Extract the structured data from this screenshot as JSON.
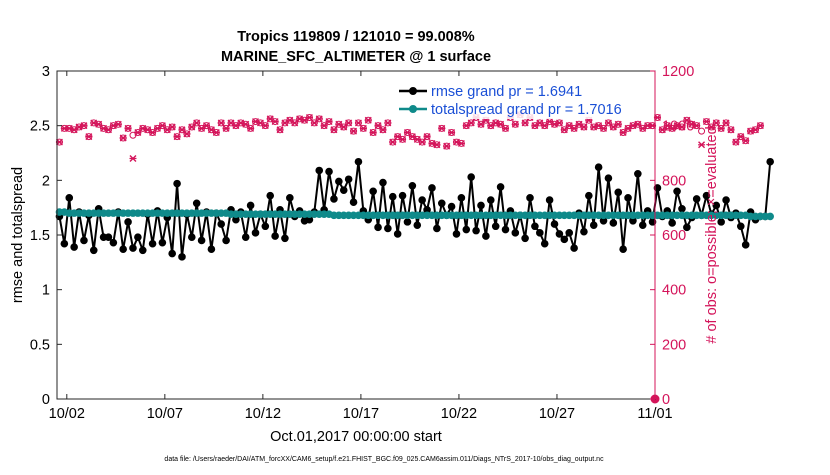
{
  "chart_data": {
    "type": "line",
    "title_line1": "Tropics 119809 / 121010 = 99.008%",
    "title_line2": "MARINE_SFC_ALTIMETER @ 1 surface",
    "xlabel": "Oct.01,2017 00:00:00 start",
    "ylabel_left": "rmse and totalspread",
    "ylabel_right": "# of obs: o=possible; ×=evaluated",
    "footnote": "data file: /Users/raeder/DAI/ATM_forcXX/CAM6_setup/f.e21.FHIST_BGC.f09_025.CAM6assim.011/Diags_NTrS_2017-10/obs_diag_output.nc",
    "x_ticks": [
      "10/02",
      "10/07",
      "10/12",
      "10/17",
      "10/22",
      "10/27",
      "11/01"
    ],
    "x_tick_days": [
      1,
      6,
      11,
      16,
      21,
      26,
      31
    ],
    "xlim_days": [
      0.5,
      31
    ],
    "y_left_ticks": [
      "0",
      "0.5",
      "1",
      "1.5",
      "2",
      "2.5",
      "3"
    ],
    "ylim_left": [
      0,
      3
    ],
    "y_right_ticks": [
      "0",
      "200",
      "400",
      "600",
      "800",
      "1000",
      "1200"
    ],
    "ylim_right": [
      0,
      1200
    ],
    "grid": false,
    "legend_position": "top-right",
    "colors": {
      "rmse": "#000000",
      "spread": "#0f8a8a",
      "obs": "#d4145a",
      "legend_text": "#1a4fd6"
    },
    "series": [
      {
        "name": "rmse grand pr = 1.6941",
        "axis": "left",
        "values": [
          1.67,
          1.42,
          1.84,
          1.39,
          1.71,
          1.45,
          1.68,
          1.36,
          1.74,
          1.48,
          1.48,
          1.43,
          1.71,
          1.37,
          1.62,
          1.38,
          1.48,
          1.36,
          1.69,
          1.42,
          1.72,
          1.43,
          1.66,
          1.33,
          1.97,
          1.3,
          1.69,
          1.48,
          1.79,
          1.45,
          1.71,
          1.37,
          1.7,
          1.6,
          1.45,
          1.73,
          1.64,
          1.71,
          1.48,
          1.77,
          1.52,
          1.69,
          1.58,
          1.86,
          1.49,
          1.73,
          1.47,
          1.84,
          1.67,
          1.72,
          1.63,
          1.64,
          1.71,
          2.09,
          1.73,
          2.08,
          1.83,
          1.99,
          1.91,
          2.01,
          1.8,
          2.17,
          1.72,
          1.64,
          1.9,
          1.57,
          1.98,
          1.56,
          1.85,
          1.51,
          1.86,
          1.62,
          1.95,
          1.59,
          1.82,
          1.73,
          1.93,
          1.56,
          1.79,
          1.68,
          1.76,
          1.51,
          1.84,
          1.55,
          2.03,
          1.54,
          1.77,
          1.49,
          1.82,
          1.58,
          1.94,
          1.55,
          1.72,
          1.52,
          1.68,
          1.47,
          1.84,
          1.58,
          1.52,
          1.42,
          1.82,
          1.6,
          1.51,
          1.46,
          1.52,
          1.38,
          1.7,
          1.53,
          1.86,
          1.59,
          2.12,
          1.63,
          2.02,
          1.61,
          1.89,
          1.37,
          1.84,
          1.63,
          2.06,
          1.59,
          1.72,
          1.62,
          1.93,
          1.67,
          1.72,
          1.61,
          1.9,
          1.74,
          1.57,
          1.66,
          1.83,
          1.68,
          1.86,
          1.69,
          1.77,
          1.62,
          1.82,
          1.66,
          1.7,
          1.58,
          1.41,
          1.71,
          1.64,
          1.67,
          1.67,
          2.17
        ]
      },
      {
        "name": "totalspread grand pr = 1.7016",
        "axis": "left",
        "values": [
          1.71,
          1.71,
          1.7,
          1.7,
          1.7,
          1.7,
          1.7,
          1.7,
          1.7,
          1.7,
          1.7,
          1.7,
          1.7,
          1.7,
          1.7,
          1.7,
          1.7,
          1.7,
          1.7,
          1.7,
          1.7,
          1.7,
          1.7,
          1.7,
          1.7,
          1.7,
          1.7,
          1.7,
          1.7,
          1.7,
          1.7,
          1.7,
          1.7,
          1.7,
          1.7,
          1.69,
          1.69,
          1.69,
          1.69,
          1.69,
          1.69,
          1.69,
          1.69,
          1.69,
          1.69,
          1.69,
          1.69,
          1.69,
          1.69,
          1.69,
          1.69,
          1.69,
          1.69,
          1.69,
          1.69,
          1.69,
          1.68,
          1.68,
          1.68,
          1.68,
          1.68,
          1.68,
          1.68,
          1.68,
          1.68,
          1.68,
          1.68,
          1.68,
          1.68,
          1.68,
          1.68,
          1.68,
          1.68,
          1.68,
          1.68,
          1.68,
          1.68,
          1.68,
          1.68,
          1.68,
          1.68,
          1.68,
          1.68,
          1.68,
          1.68,
          1.68,
          1.68,
          1.68,
          1.68,
          1.68,
          1.68,
          1.68,
          1.68,
          1.68,
          1.68,
          1.68,
          1.68,
          1.68,
          1.68,
          1.68,
          1.68,
          1.68,
          1.68,
          1.68,
          1.68,
          1.68,
          1.68,
          1.68,
          1.68,
          1.68,
          1.68,
          1.68,
          1.68,
          1.68,
          1.68,
          1.68,
          1.68,
          1.68,
          1.68,
          1.68,
          1.68,
          1.68,
          1.68,
          1.68,
          1.68,
          1.68,
          1.68,
          1.68,
          1.68,
          1.68,
          1.68,
          1.68,
          1.68,
          1.68,
          1.68,
          1.68,
          1.68,
          1.68,
          1.68,
          1.68,
          1.68,
          1.67,
          1.67,
          1.67,
          1.67,
          1.67
        ]
      },
      {
        "name": "obs possible",
        "axis": "right",
        "marker": "o",
        "values": [
          940,
          990,
          990,
          985,
          995,
          1000,
          960,
          1010,
          1005,
          990,
          985,
          1000,
          1005,
          955,
          990,
          965,
          975,
          990,
          985,
          975,
          990,
          1000,
          985,
          995,
          960,
          985,
          970,
          995,
          1010,
          990,
          1000,
          985,
          975,
          1010,
          990,
          1010,
          1000,
          1010,
          1005,
          990,
          1015,
          1010,
          1000,
          1025,
          1015,
          985,
          1010,
          1020,
          1010,
          1025,
          1020,
          1030,
          1010,
          1025,
          1000,
          1015,
          985,
          1005,
          995,
          1010,
          980,
          1010,
          990,
          1020,
          975,
          1000,
          985,
          1010,
          940,
          960,
          950,
          975,
          960,
          950,
          940,
          960,
          935,
          930,
          990,
          925,
          975,
          940,
          935,
          1000,
          1010,
          1030,
          1005,
          1020,
          1000,
          1010,
          1005,
          990,
          1030,
          1005,
          1040,
          1010,
          1030,
          1000,
          1010,
          1000,
          1015,
          1005,
          1010,
          985,
          1000,
          990,
          1005,
          995,
          1020,
          995,
          1000,
          990,
          1010,
          995,
          1005,
          975,
          990,
          1000,
          1005,
          990,
          1000,
          1000,
          1030,
          985,
          1000,
          990,
          1000,
          995,
          1020,
          1005,
          1000,
          980,
          1015,
          995,
          1010,
          990,
          1010,
          985,
          940,
          960,
          945,
          980,
          985,
          1000
        ]
      },
      {
        "name": "obs evaluated",
        "axis": "right",
        "marker": "x",
        "values": [
          940,
          990,
          990,
          985,
          995,
          1000,
          960,
          1010,
          1005,
          990,
          985,
          1000,
          1005,
          955,
          990,
          880,
          975,
          990,
          985,
          975,
          990,
          1000,
          985,
          995,
          960,
          985,
          970,
          995,
          1010,
          990,
          1000,
          985,
          975,
          1010,
          990,
          1010,
          1000,
          1010,
          1005,
          990,
          1015,
          1010,
          1000,
          1025,
          1015,
          985,
          1010,
          1020,
          1010,
          1025,
          1020,
          1030,
          1010,
          1025,
          1000,
          1015,
          985,
          1005,
          995,
          1010,
          980,
          1010,
          990,
          1020,
          975,
          1000,
          985,
          1010,
          940,
          960,
          950,
          975,
          960,
          950,
          940,
          960,
          935,
          930,
          990,
          925,
          975,
          940,
          935,
          1000,
          1010,
          1030,
          1005,
          1020,
          1000,
          1010,
          1005,
          990,
          1030,
          1005,
          1040,
          1010,
          1030,
          1000,
          1010,
          1000,
          1015,
          1005,
          1010,
          985,
          1000,
          990,
          1005,
          995,
          1020,
          995,
          1000,
          990,
          1010,
          995,
          1005,
          975,
          990,
          1000,
          1005,
          990,
          1000,
          1000,
          1030,
          985,
          1000,
          990,
          1000,
          995,
          1020,
          1005,
          1000,
          930,
          1015,
          995,
          1010,
          990,
          1010,
          985,
          940,
          960,
          945,
          980,
          985,
          1000
        ]
      }
    ]
  }
}
